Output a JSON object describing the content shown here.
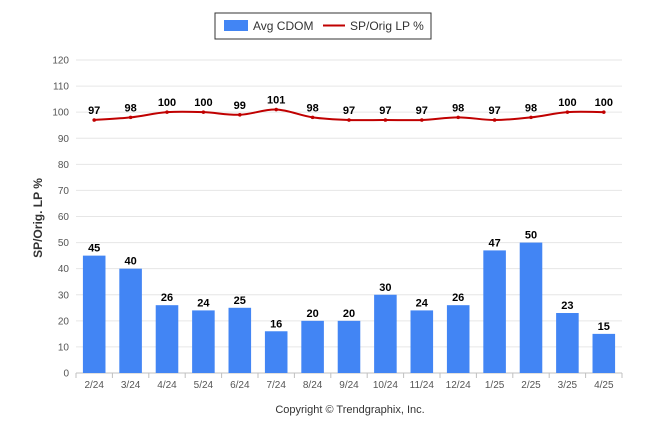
{
  "colors": {
    "bar": "#4285f4",
    "line": "#c00000",
    "grid": "#e6e6e6",
    "axis": "#c0c0c0"
  },
  "chart_data": {
    "type": "bar",
    "categories": [
      "2/24",
      "3/24",
      "4/24",
      "5/24",
      "6/24",
      "7/24",
      "8/24",
      "9/24",
      "10/24",
      "11/24",
      "12/24",
      "1/25",
      "2/25",
      "3/25",
      "4/25"
    ],
    "series": [
      {
        "name": "Avg CDOM",
        "type": "bar",
        "values": [
          45,
          40,
          26,
          24,
          25,
          16,
          20,
          20,
          30,
          24,
          26,
          47,
          50,
          23,
          15
        ]
      },
      {
        "name": "SP/Orig LP %",
        "type": "line",
        "values": [
          97,
          98,
          100,
          100,
          99,
          101,
          98,
          97,
          97,
          97,
          98,
          97,
          98,
          100,
          100
        ]
      }
    ],
    "ylabel": "SP/Orig. LP %",
    "ylim": [
      0,
      120
    ],
    "yticks": [
      0,
      10,
      20,
      30,
      40,
      50,
      60,
      70,
      80,
      90,
      100,
      110,
      120
    ],
    "grid": true,
    "legend_position": "top-center",
    "credit": "Copyright © Trendgraphix, Inc."
  }
}
